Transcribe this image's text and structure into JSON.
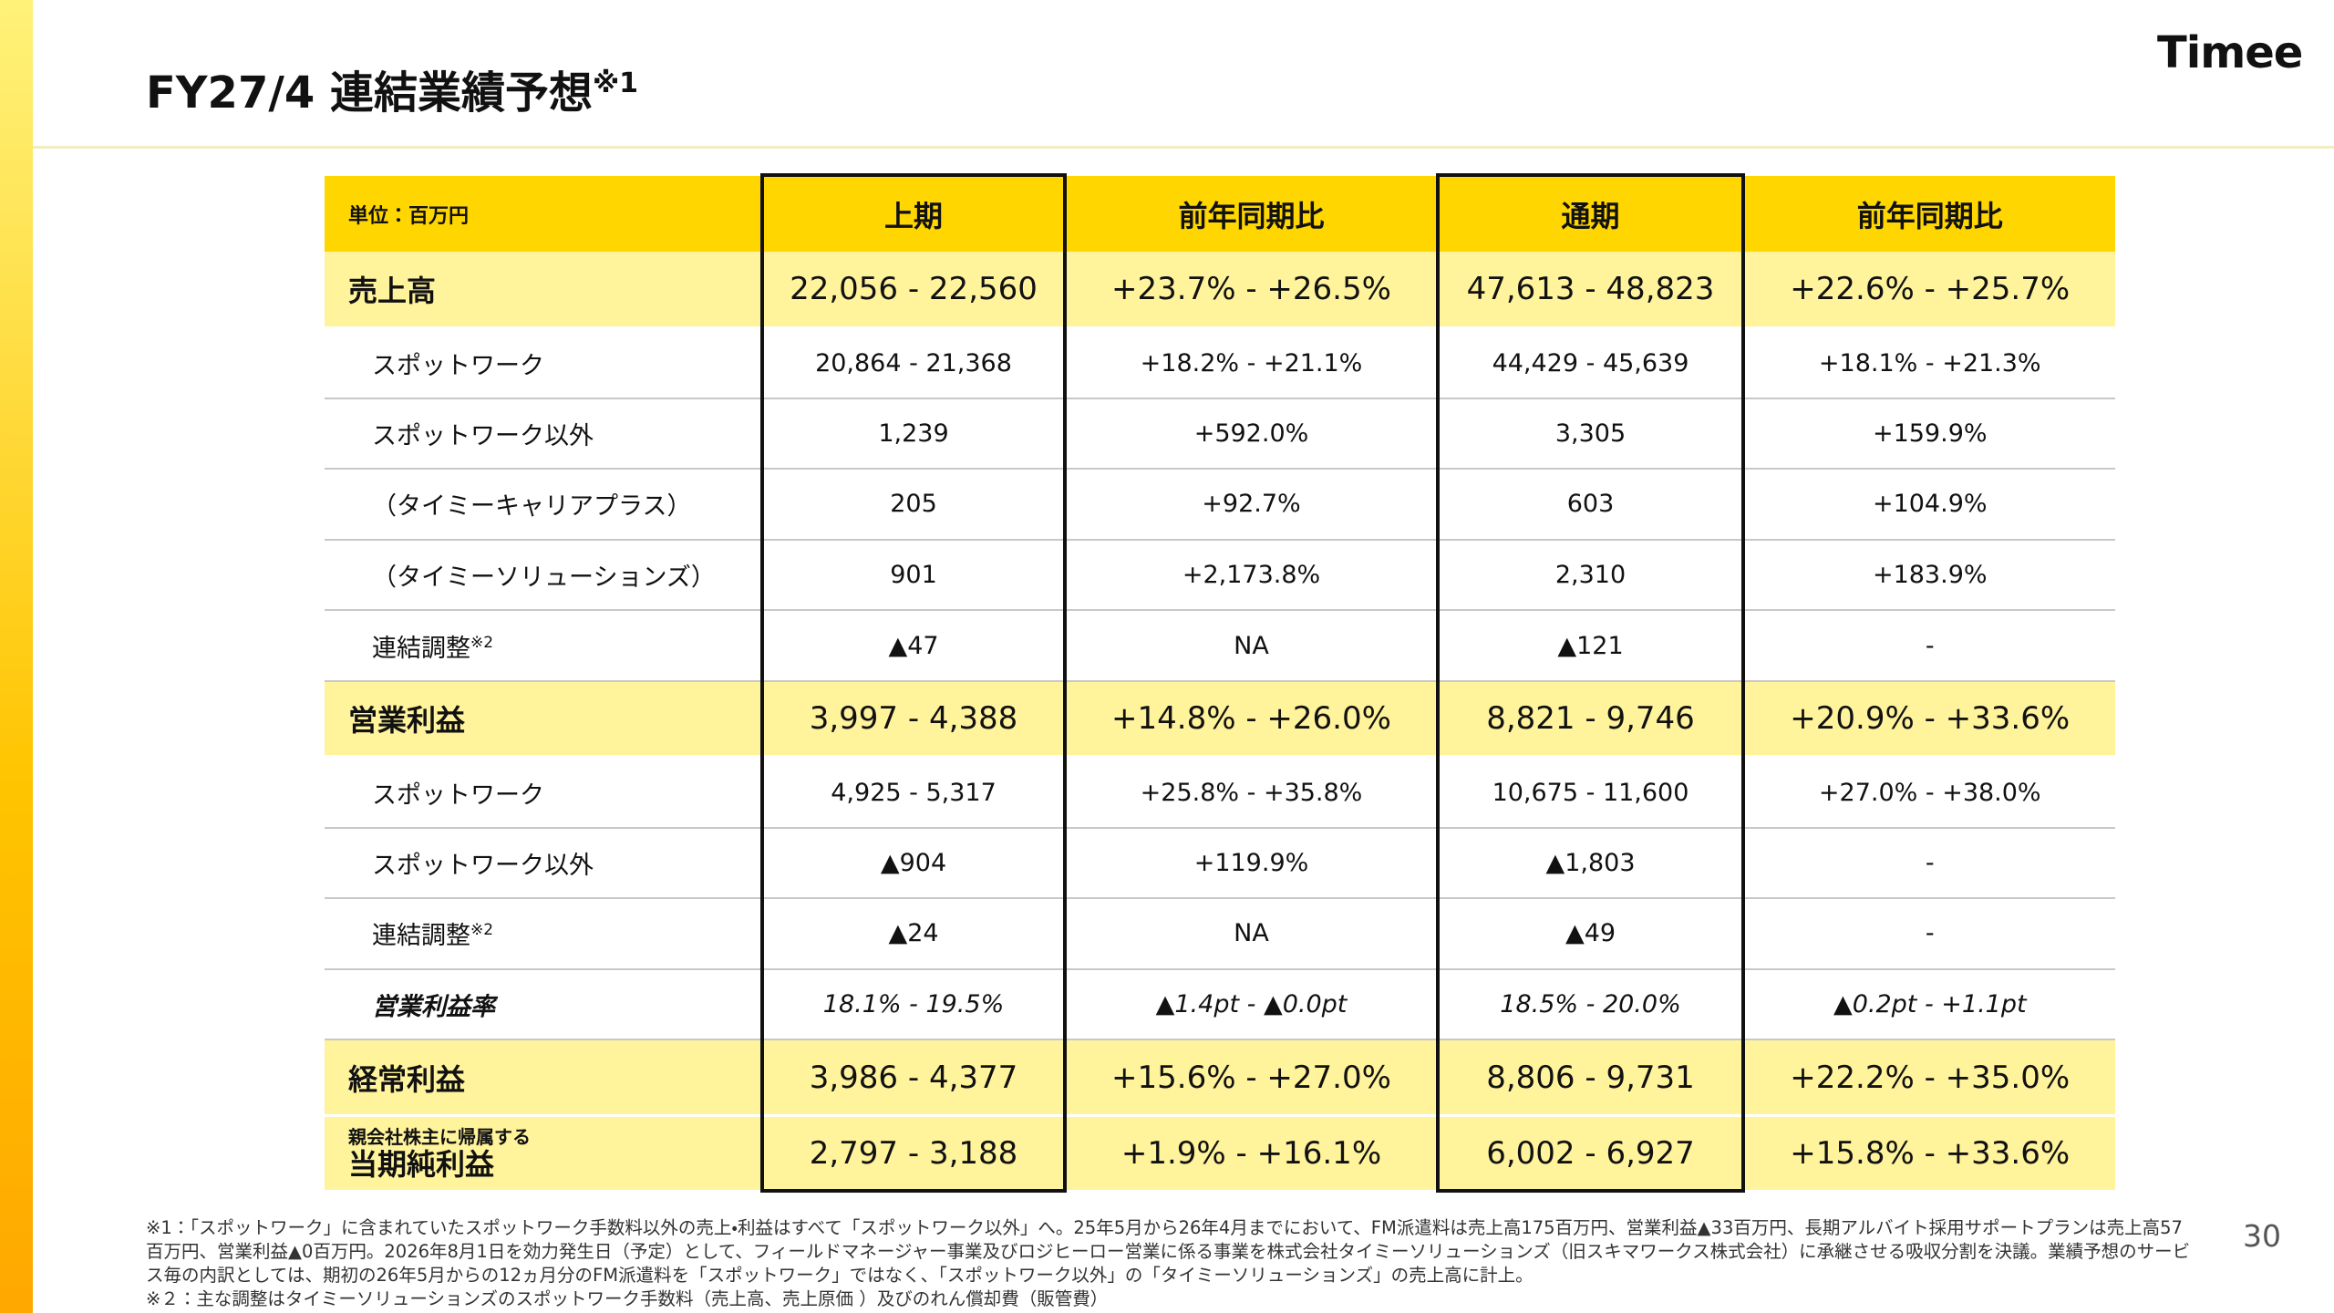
{
  "header": {
    "title": "FY27/4 連結業績予想",
    "title_note": "※1",
    "logo": "Timee"
  },
  "table": {
    "columns": [
      "単位：百万円",
      "上期",
      "前年同期比",
      "通期",
      "前年同期比"
    ],
    "rows": [
      {
        "label": "売上高",
        "cells": [
          "22,056 - 22,560",
          "+23.7% - +26.5%",
          "47,613 - 48,823",
          "+22.6% - +25.7%"
        ]
      },
      {
        "label": "スポットワーク",
        "cells": [
          "20,864 - 21,368",
          "+18.2% - +21.1%",
          "44,429 - 45,639",
          "+18.1% - +21.3%"
        ]
      },
      {
        "label": "スポットワーク以外",
        "cells": [
          "1,239",
          "+592.0%",
          "3,305",
          "+159.9%"
        ]
      },
      {
        "label": "（タイミーキャリアプラス）",
        "cells": [
          "205",
          "+92.7%",
          "603",
          "+104.9%"
        ]
      },
      {
        "label": "（タイミーソリューションズ）",
        "cells": [
          "901",
          "+2,173.8%",
          "2,310",
          "+183.9%"
        ]
      },
      {
        "label": "連結調整",
        "note": "※2",
        "cells": [
          "▲47",
          "NA",
          "▲121",
          "-"
        ]
      },
      {
        "label": "営業利益",
        "cells": [
          "3,997 - 4,388",
          "+14.8% - +26.0%",
          "8,821 - 9,746",
          "+20.9% - +33.6%"
        ]
      },
      {
        "label": "スポットワーク",
        "cells": [
          "4,925 - 5,317",
          "+25.8% - +35.8%",
          "10,675 - 11,600",
          "+27.0% - +38.0%"
        ]
      },
      {
        "label": "スポットワーク以外",
        "cells": [
          "▲904",
          "+119.9%",
          "▲1,803",
          "-"
        ]
      },
      {
        "label": "連結調整",
        "note": "※2",
        "cells": [
          "▲24",
          "NA",
          "▲49",
          "-"
        ]
      },
      {
        "label": "営業利益率",
        "cells": [
          "18.1% - 19.5%",
          "▲1.4pt - ▲0.0pt",
          "18.5% - 20.0%",
          "▲0.2pt - +1.1pt"
        ]
      },
      {
        "label": "経常利益",
        "cells": [
          "3,986 - 4,377",
          "+15.6% - +27.0%",
          "8,806 - 9,731",
          "+22.2% - +35.0%"
        ]
      },
      {
        "sublabel": "親会社株主に帰属する",
        "label": "当期純利益",
        "cells": [
          "2,797 - 3,188",
          "+1.9% - +16.1%",
          "6,002 - 6,927",
          "+15.8% - +33.6%"
        ]
      }
    ]
  },
  "footnotes": [
    "※1：「スポットワーク」に含まれていたスポットワーク手数料以外の売上・利益はすべて「スポットワーク以外」へ。25年5月から26年4月までにおいて、FM派遣料は売上高175百万円、営業利益▲33百万円、長期アルバイト採用サポートプランは売上高57百万円、営業利益▲0百万円。2026年8月1日を効力発生日（予定）として、フィールドマネージャー事業及びロジヒーロー営業に係る事業を株式会社タイミーソリューションズ（旧スキマワークス株式会社）に承継させる吸収分割を決議。業績予想のサービス毎の内訳としては、期初の26年5月からの12ヵ月分のFM派遣料を「スポットワーク」ではなく、「スポットワーク以外」の「タイミーソリューションズ」の売上高に計上。",
    "※２：主な調整はタイミーソリューションズのスポットワーク手数料（売上高、売上原価 ）及びのれん償却費（販管費）"
  ],
  "page_number": "30"
}
